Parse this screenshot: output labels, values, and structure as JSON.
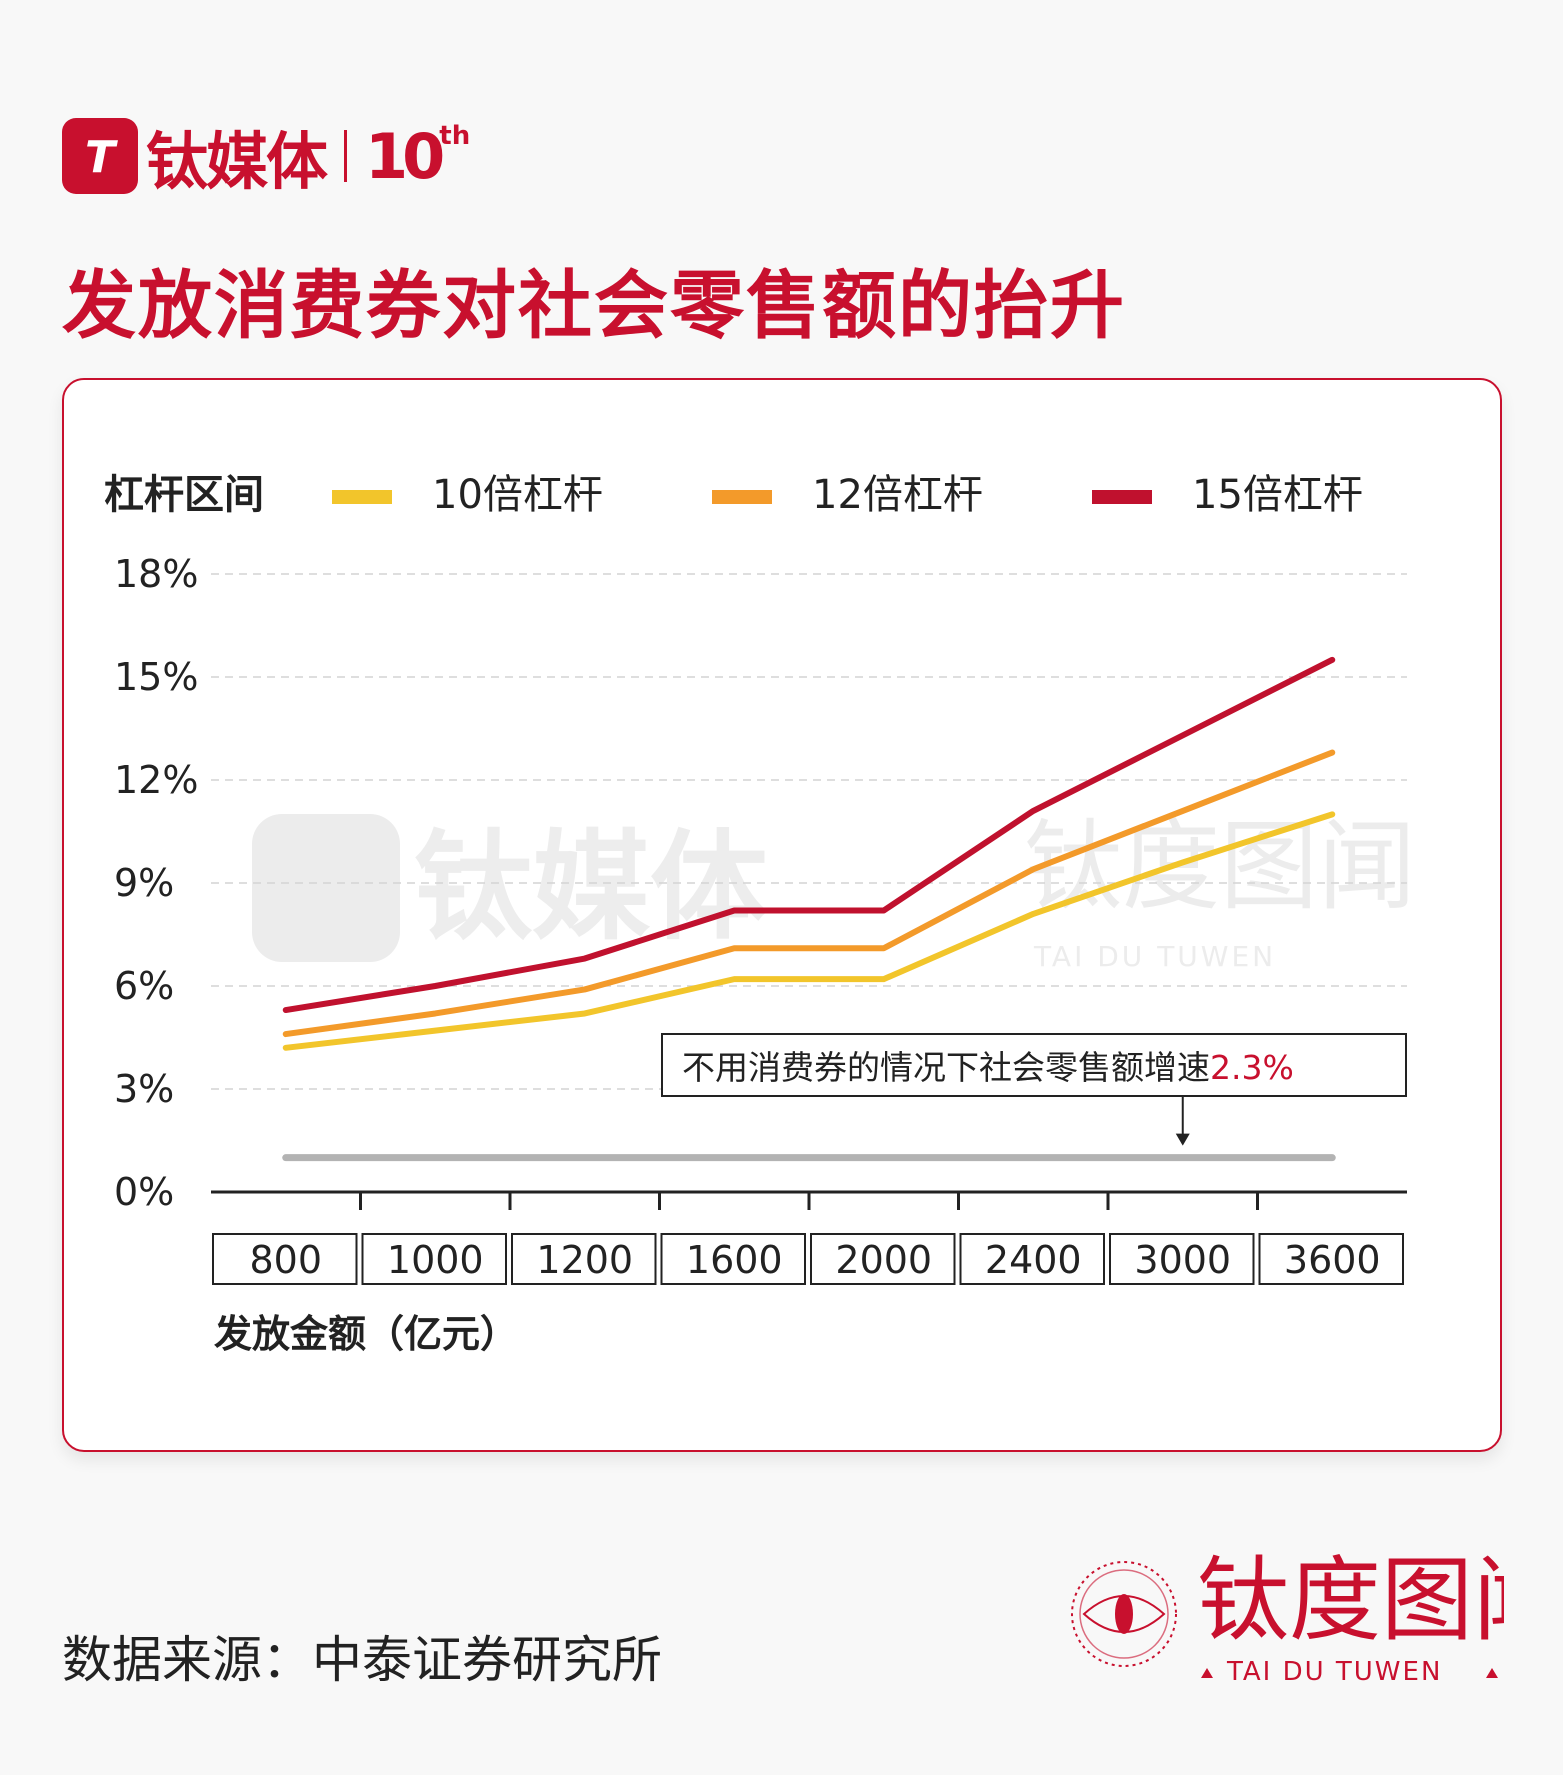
{
  "brand": {
    "logo_mark": "T",
    "name": "钛媒体",
    "anniversary": "10",
    "anniversary_suffix": "th"
  },
  "title": "发放消费券对社会零售额的抬升",
  "chart_data": {
    "type": "line",
    "legend_title": "杠杆区间",
    "legend_position": "top",
    "categories": [
      "800",
      "1000",
      "1200",
      "1600",
      "2000",
      "2400",
      "3000",
      "3600"
    ],
    "series": [
      {
        "name": "10倍杠杆",
        "color": "#f2c52b",
        "values": [
          4.2,
          4.7,
          5.2,
          6.2,
          6.2,
          8.1,
          9.6,
          11.0
        ]
      },
      {
        "name": "12倍杠杆",
        "color": "#f39a2a",
        "values": [
          4.6,
          5.2,
          5.9,
          7.1,
          7.1,
          9.4,
          11.1,
          12.8
        ]
      },
      {
        "name": "15倍杠杆",
        "color": "#c0112e",
        "values": [
          5.3,
          6.0,
          6.8,
          8.2,
          8.2,
          11.1,
          13.3,
          15.5
        ]
      }
    ],
    "baseline": {
      "value": 1.0,
      "color": "#b3b3b3"
    },
    "ylim": [
      0,
      18
    ],
    "yticks": [
      "0%",
      "3%",
      "6%",
      "9%",
      "12%",
      "15%",
      "18%"
    ],
    "xlabel": "发放金额（亿元）",
    "ylabel": "",
    "grid": true,
    "annotation": {
      "text": "不用消费券的情况下社会零售额增速",
      "value": "2.3%",
      "value_color": "#c8102e",
      "category": "3000"
    }
  },
  "watermark": {
    "cn": "钛度图闻",
    "en": "TAI DU TUWEN",
    "logo_text": "钛媒体"
  },
  "source": "数据来源：中泰证券研究所",
  "stamp": {
    "cn": "钛度图闻",
    "en": "TAI DU TUWEN"
  }
}
